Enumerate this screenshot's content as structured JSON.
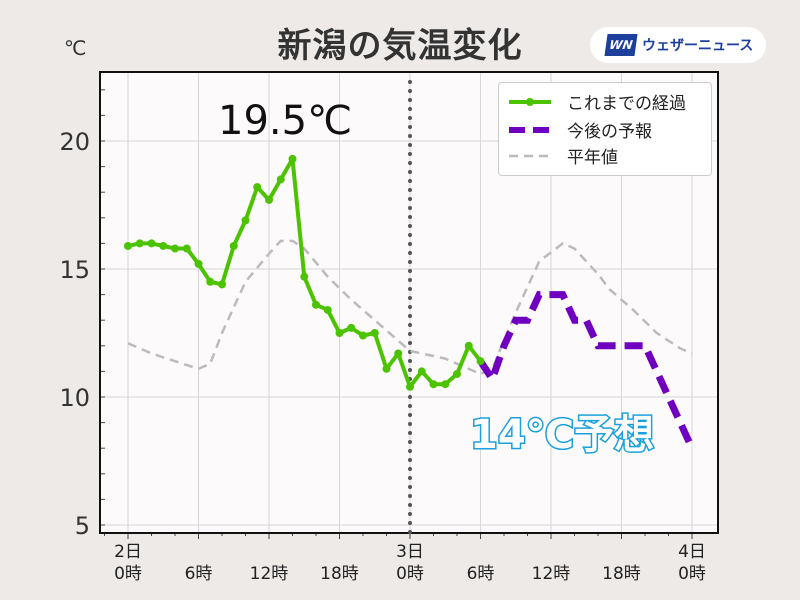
{
  "title": "新潟の気温変化",
  "brand": {
    "mark": "WN",
    "name": "ウェザーニュース"
  },
  "unit": "℃",
  "annotations": {
    "max": "19.5℃",
    "forecast": "14℃予想"
  },
  "colors": {
    "observed": "#4cc300",
    "forecast": "#7000c0",
    "normal": "#bbbbbb",
    "now_line": "#555555"
  },
  "chart_data": {
    "type": "line",
    "title": "新潟の気温変化",
    "ylabel": "℃",
    "ylim": [
      4.5,
      22.5
    ],
    "xlim": [
      -2,
      49.5
    ],
    "yticks": [
      5,
      10,
      15,
      20
    ],
    "xticks": [
      {
        "h": 0,
        "label": "2日\n0時"
      },
      {
        "h": 6,
        "label": "6時"
      },
      {
        "h": 12,
        "label": "12時"
      },
      {
        "h": 18,
        "label": "18時"
      },
      {
        "h": 24,
        "label": "3日\n0時"
      },
      {
        "h": 30,
        "label": "6時"
      },
      {
        "h": 36,
        "label": "12時"
      },
      {
        "h": 42,
        "label": "18時"
      },
      {
        "h": 48,
        "label": "4日\n0時"
      }
    ],
    "now_hour": 24,
    "legend_position": "top-right",
    "series": [
      {
        "name": "これまでの経過",
        "style": "solid-markers",
        "x": [
          0,
          1,
          2,
          3,
          4,
          5,
          6,
          7,
          8,
          9,
          10,
          11,
          12,
          13,
          14,
          15,
          16,
          17,
          18,
          19,
          20,
          21,
          22,
          23,
          24,
          25,
          26,
          27,
          28,
          29,
          30
        ],
        "y": [
          15.9,
          16.0,
          16.0,
          15.9,
          15.8,
          15.8,
          15.2,
          14.5,
          14.4,
          15.9,
          16.9,
          18.2,
          17.7,
          18.5,
          19.3,
          14.7,
          13.6,
          13.4,
          12.5,
          12.7,
          12.4,
          12.5,
          11.1,
          11.7,
          10.4,
          11.0,
          10.5,
          10.5,
          10.9,
          12.0,
          11.4
        ]
      },
      {
        "name": "今後の予報",
        "style": "dashed-thick",
        "x": [
          30,
          31,
          32,
          33,
          34,
          35,
          37,
          38,
          39,
          40,
          41,
          44,
          48
        ],
        "y": [
          11.4,
          10.7,
          12.0,
          13.0,
          13.0,
          14.0,
          14.0,
          13.0,
          13.0,
          12.0,
          12.0,
          12.0,
          8.0
        ]
      },
      {
        "name": "平年値",
        "style": "dashed-thin",
        "x": [
          0,
          2,
          4,
          6,
          7,
          8,
          10,
          12,
          13,
          14,
          15,
          17,
          19,
          21,
          23,
          24,
          27,
          29,
          30,
          31,
          33,
          35,
          37,
          38,
          40,
          41,
          43,
          45,
          47,
          48
        ],
        "y": [
          12.1,
          11.7,
          11.4,
          11.1,
          11.3,
          12.5,
          14.5,
          15.6,
          16.1,
          16.1,
          15.8,
          14.7,
          13.8,
          13.0,
          12.2,
          11.8,
          11.5,
          11.1,
          10.9,
          11.1,
          13.3,
          15.3,
          16.0,
          15.8,
          14.8,
          14.2,
          13.4,
          12.5,
          11.9,
          11.7
        ]
      }
    ]
  }
}
